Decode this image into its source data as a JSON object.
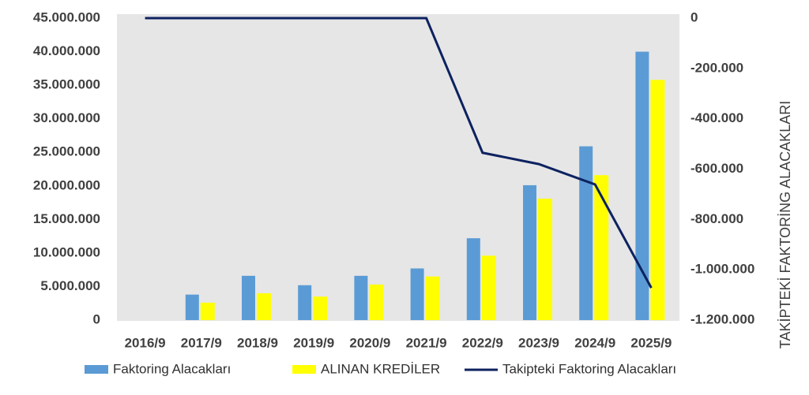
{
  "chart_data": {
    "type": "bar-line",
    "categories": [
      "2016/9",
      "2017/9",
      "2018/9",
      "2019/9",
      "2020/9",
      "2021/9",
      "2022/9",
      "2023/9",
      "2024/9",
      "2025/9"
    ],
    "series": [
      {
        "name": "Faktoring Alacakları",
        "type": "bar",
        "color": "#5b9bd5",
        "values": [
          0,
          3800000,
          6600000,
          5200000,
          6600000,
          7700000,
          12200000,
          20100000,
          25900000,
          40000000
        ]
      },
      {
        "name": "ALINAN KREDİLER",
        "type": "bar",
        "color": "#ffff00",
        "values": [
          0,
          2600000,
          4000000,
          3500000,
          5300000,
          6500000,
          9600000,
          18100000,
          21600000,
          35800000
        ]
      },
      {
        "name": "Takipteki Faktoring Alacakları",
        "type": "line",
        "axis": "y2",
        "color": "#0d2260",
        "values": [
          0,
          0,
          0,
          0,
          0,
          0,
          -535000,
          -580000,
          -661000,
          -1072000
        ]
      }
    ],
    "ylim": [
      0,
      45000000
    ],
    "yticks": [
      0,
      {
        "value": 5000000,
        "label": "5.000.000"
      },
      {
        "value": 10000000,
        "label": "10.000.000"
      },
      {
        "value": 15000000,
        "label": "15.000.000"
      },
      {
        "value": 20000000,
        "label": "20.000.000"
      },
      {
        "value": 25000000,
        "label": "25.000.000"
      },
      {
        "value": 30000000,
        "label": "30.000.000"
      },
      {
        "value": 35000000,
        "label": "35.000.000"
      },
      {
        "value": 40000000,
        "label": "40.000.000"
      },
      {
        "value": 45000000,
        "label": "45.000.000"
      }
    ],
    "y2lim": [
      -1200000,
      0
    ],
    "y2ticks": [
      0,
      {
        "value": -200000,
        "label": "-200.000"
      },
      {
        "value": -400000,
        "label": "-400.000"
      },
      {
        "value": -600000,
        "label": "-600.000"
      },
      {
        "value": -800000,
        "label": "-800.000"
      },
      {
        "value": -1000000,
        "label": "-1.000.000"
      },
      {
        "value": -1200000,
        "label": "-1.200.000"
      }
    ],
    "y2label": "TAKİPTEKİ FAKTORİNG ALACAKLARI",
    "legend": "bottom"
  }
}
